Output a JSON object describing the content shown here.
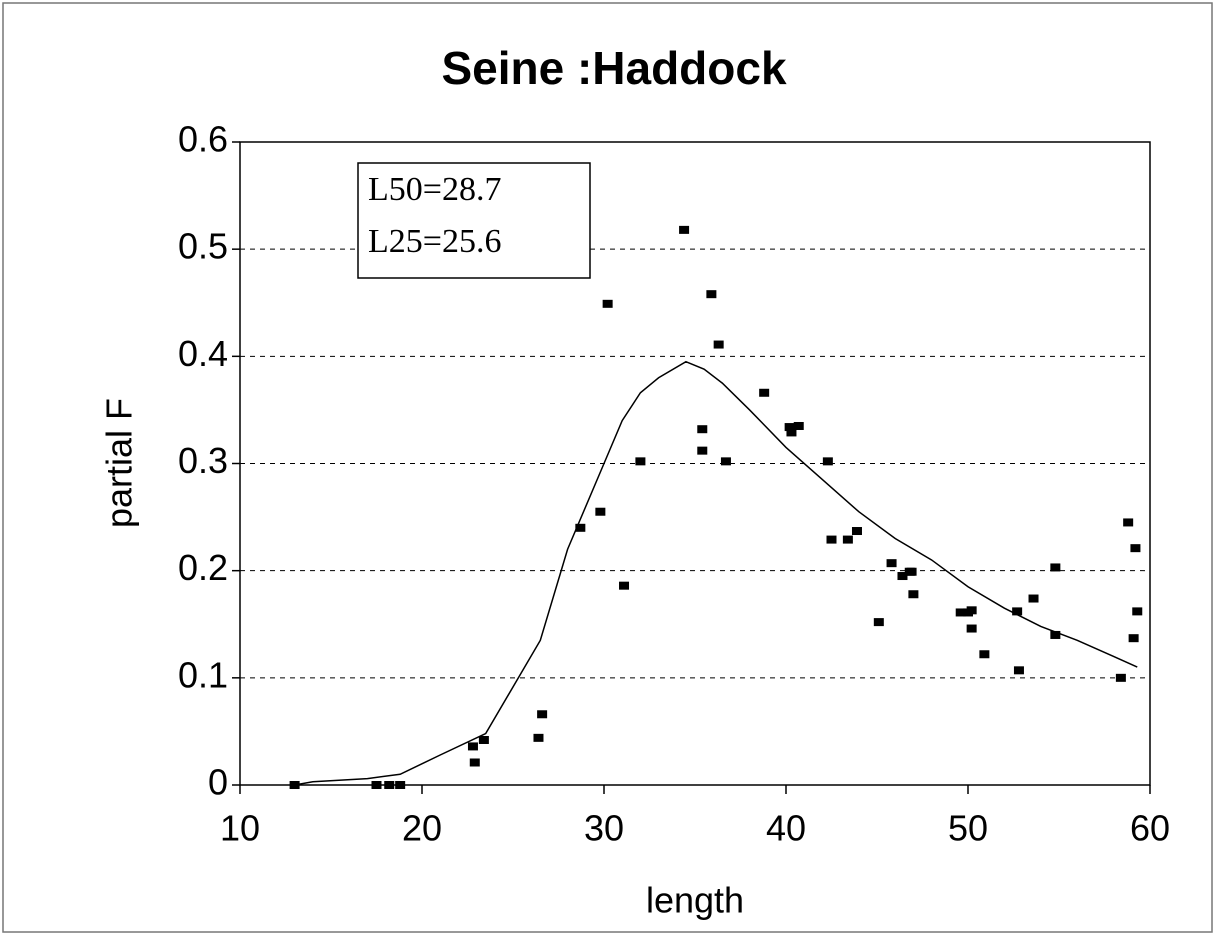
{
  "chart_data": {
    "type": "scatter",
    "title": "Seine :Haddock",
    "x_label": "length",
    "y_label": "partial F",
    "annotations": [
      "L50=28.7",
      "L25=25.6"
    ],
    "points": {
      "color": "#000000",
      "x": [
        13,
        17.5,
        18.2,
        18.8,
        22.8,
        22.9,
        23.4,
        26.4,
        26.6,
        28.7,
        29.8,
        30.2,
        31.1,
        32,
        34.4,
        35.4,
        35.4,
        35.9,
        36.3,
        36.7,
        38.8,
        40.2,
        40.3,
        40.7,
        42.3,
        42.5,
        43.4,
        43.9,
        45.1,
        45.8,
        46.4,
        46.8,
        46.9,
        47,
        49.6,
        50,
        50.2,
        50.2,
        50.9,
        52.7,
        52.8,
        53.6,
        54.8,
        54.8,
        58.4,
        58.8,
        59.1,
        59.2,
        59.3
      ],
      "values": [
        0,
        0,
        0,
        0,
        0.036,
        0.021,
        0.042,
        0.044,
        0.066,
        0.24,
        0.255,
        0.449,
        0.186,
        0.302,
        0.518,
        0.332,
        0.312,
        0.458,
        0.411,
        0.302,
        0.366,
        0.334,
        0.329,
        0.335,
        0.302,
        0.229,
        0.229,
        0.237,
        0.152,
        0.207,
        0.195,
        0.199,
        0.199,
        0.178,
        0.161,
        0.161,
        0.163,
        0.146,
        0.122,
        0.162,
        0.107,
        0.174,
        0.203,
        0.14,
        0.1,
        0.245,
        0.137,
        0.221,
        0.162
      ]
    },
    "curve": {
      "color": "#000000",
      "x": [
        13,
        14,
        17,
        18.8,
        21,
        23.5,
        26.5,
        28,
        30,
        31,
        32,
        33,
        34.5,
        35.5,
        36.5,
        38,
        40,
        42,
        44,
        46,
        48,
        50,
        52,
        54,
        56,
        58,
        59.3
      ],
      "values": [
        0,
        0.003,
        0.006,
        0.01,
        0.028,
        0.048,
        0.135,
        0.22,
        0.3,
        0.34,
        0.366,
        0.38,
        0.395,
        0.388,
        0.375,
        0.35,
        0.315,
        0.285,
        0.255,
        0.23,
        0.21,
        0.185,
        0.165,
        0.148,
        0.135,
        0.12,
        0.11
      ]
    },
    "xlim": [
      10,
      60
    ],
    "xticks": [
      10,
      20,
      30,
      40,
      50,
      60
    ],
    "ylim": [
      0,
      0.6
    ],
    "yticks": [
      0,
      0.1,
      0.2,
      0.3,
      0.4,
      0.5,
      0.6
    ],
    "grid": true
  }
}
